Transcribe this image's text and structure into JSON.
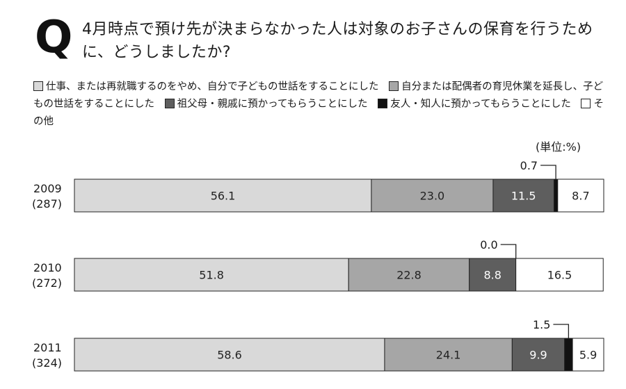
{
  "header": {
    "q_mark": "Q",
    "title": "4月時点で預け先が決まらなかった人は対象のお子さんの保育を行うために、どうしましたか?"
  },
  "unit_label": "(単位:%)",
  "chart_data": {
    "type": "bar",
    "stacked": true,
    "orientation": "horizontal",
    "percent_total": 100,
    "categories": [
      {
        "year": "2009",
        "n": "(287)"
      },
      {
        "year": "2010",
        "n": "(272)"
      },
      {
        "year": "2011",
        "n": "(324)"
      }
    ],
    "series": [
      {
        "name": "仕事、または再就職するのをやめ、自分で子どもの世話をすることにした",
        "values": [
          56.1,
          51.8,
          58.6
        ],
        "color": "#d9d9d9",
        "label_color": "#222222"
      },
      {
        "name": "自分または配偶者の育児休業を延長し、子どもの世話をすることにした",
        "values": [
          23.0,
          22.8,
          24.1
        ],
        "color": "#a6a6a6",
        "label_color": "#222222"
      },
      {
        "name": "祖父母・親戚に預かってもらうことにした",
        "values": [
          11.5,
          8.8,
          9.9
        ],
        "color": "#5e5e5e",
        "label_color": "#ffffff"
      },
      {
        "name": "友人・知人に預かってもらうことにした",
        "values": [
          0.7,
          0.0,
          1.5
        ],
        "color": "#111111",
        "label_color": "#ffffff"
      },
      {
        "name": "その他",
        "values": [
          8.7,
          16.5,
          5.9
        ],
        "color": "#ffffff",
        "label_color": "#222222"
      }
    ],
    "value_labels": [
      [
        "56.1",
        "23.0",
        "11.5",
        "0.7",
        "8.7"
      ],
      [
        "51.8",
        "22.8",
        "8.8",
        "0.0",
        "16.5"
      ],
      [
        "58.6",
        "24.1",
        "9.9",
        "1.5",
        "5.9"
      ]
    ],
    "callout_series_index": 3,
    "legend": "top"
  }
}
